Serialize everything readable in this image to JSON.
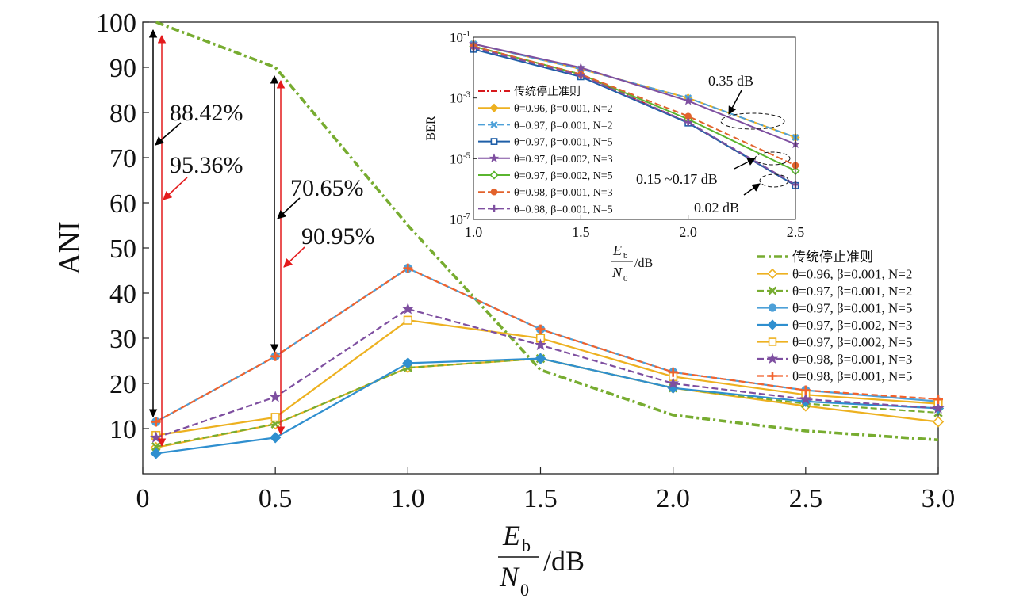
{
  "chart_data": [
    {
      "type": "line",
      "ylabel": "ANI",
      "xlabel_E": "E",
      "xlabel_b": "b",
      "xlabel_N": "N",
      "xlabel_0": "0",
      "xlabel_unit": "/dB",
      "xlim": [
        0,
        3.0
      ],
      "ylim": [
        0,
        100
      ],
      "x_ticks": [
        0,
        0.5,
        1.0,
        1.5,
        2.0,
        2.5,
        3.0
      ],
      "x_tick_labels": [
        "0",
        "0.5",
        "1.0",
        "1.5",
        "2.0",
        "2.5",
        "3.0"
      ],
      "y_ticks": [
        10,
        20,
        30,
        40,
        50,
        60,
        70,
        80,
        90,
        100
      ],
      "y_tick_labels": [
        "10",
        "20",
        "30",
        "40",
        "50",
        "60",
        "70",
        "80",
        "90",
        "100"
      ],
      "legend_position": "bottom-right",
      "x": [
        0.05,
        0.5,
        1.0,
        1.5,
        2.0,
        2.5,
        3.0
      ],
      "series": [
        {
          "name": "传统停止准则",
          "color": "#77AC30",
          "dash": "10,4,3,4",
          "marker": "none",
          "values": [
            100,
            90,
            55,
            23,
            13,
            9.5,
            7.5
          ]
        },
        {
          "name": "θ=0.96, β=0.001, N=2",
          "color": "#EDB120",
          "dash": "",
          "marker": "diamond-open",
          "values": [
            5.8,
            11,
            23.5,
            25.5,
            19,
            15,
            11.5
          ]
        },
        {
          "name": "θ=0.97, β=0.001, N=2",
          "color": "#77AC30",
          "dash": "8,4",
          "marker": "x",
          "values": [
            6,
            11,
            23.5,
            25.5,
            19,
            15.5,
            13.5
          ]
        },
        {
          "name": "θ=0.97, β=0.001, N=5",
          "color": "#4DA0D8",
          "dash": "",
          "marker": "circle",
          "values": [
            11.5,
            26,
            45.5,
            32,
            22.5,
            18.5,
            16
          ]
        },
        {
          "name": "θ=0.97, β=0.002, N=3",
          "color": "#2F8FCF",
          "dash": "",
          "marker": "diamond",
          "values": [
            4.5,
            8,
            24.5,
            25.5,
            19,
            16,
            14.5
          ]
        },
        {
          "name": "θ=0.97, β=0.002, N=5",
          "color": "#EDB120",
          "dash": "",
          "marker": "square-open",
          "values": [
            8.5,
            12.5,
            34,
            30,
            21.5,
            17.5,
            15.5
          ]
        },
        {
          "name": "θ=0.98, β=0.001, N=3",
          "color": "#7E4FA0",
          "dash": "8,4",
          "marker": "star",
          "values": [
            8,
            17,
            36.5,
            28.5,
            20,
            16.5,
            14.5
          ]
        },
        {
          "name": "θ=0.98, β=0.001, N=5",
          "color": "#F2622C",
          "dash": "8,4",
          "marker": "plus",
          "values": [
            11.5,
            26,
            45.5,
            32,
            22.5,
            18.5,
            16.5
          ]
        }
      ],
      "annotations": [
        {
          "text": "88.42%",
          "color": "black"
        },
        {
          "text": "95.36%",
          "color": "red"
        },
        {
          "text": "70.65%",
          "color": "black"
        },
        {
          "text": "90.95%",
          "color": "red"
        }
      ]
    },
    {
      "type": "line",
      "ylabel": "BER",
      "xlabel_E": "E",
      "xlabel_b": "b",
      "xlabel_N": "N",
      "xlabel_0": "0",
      "xlabel_unit": "/dB",
      "xlim": [
        1.0,
        2.5
      ],
      "y_scale": "log",
      "ylim_exp": [
        -7,
        -1
      ],
      "x_ticks": [
        1.0,
        1.5,
        2.0,
        2.5
      ],
      "x_tick_labels": [
        "1.0",
        "1.5",
        "2.0",
        "2.5"
      ],
      "y_tick_exps": [
        -1,
        -3,
        -5,
        -7
      ],
      "y_tick_base": "10",
      "y_tick_exp_labels": [
        "-1",
        "-3",
        "-5",
        "-7"
      ],
      "legend_position": "left",
      "x": [
        1.0,
        1.5,
        2.0,
        2.5
      ],
      "series": [
        {
          "name": "传统停止准则",
          "color": "#D7191C",
          "dash": "8,3,2,3",
          "marker": "none",
          "values": [
            0.05,
            0.006,
            0.00015,
            1.3e-06
          ]
        },
        {
          "name": "θ=0.96, β=0.001, N=2",
          "color": "#EDB120",
          "dash": "",
          "marker": "diamond",
          "values": [
            0.06,
            0.009,
            0.001,
            5e-05
          ]
        },
        {
          "name": "θ=0.97, β=0.001, N=2",
          "color": "#4DA0D8",
          "dash": "8,4",
          "marker": "x",
          "values": [
            0.06,
            0.009,
            0.001,
            5e-05
          ]
        },
        {
          "name": "θ=0.97, β=0.001, N=5",
          "color": "#1F5FA8",
          "dash": "",
          "marker": "square-open",
          "values": [
            0.04,
            0.005,
            0.00015,
            1.3e-06
          ]
        },
        {
          "name": "θ=0.97, β=0.002, N=3",
          "color": "#7E4FA0",
          "dash": "",
          "marker": "star",
          "values": [
            0.06,
            0.01,
            0.0008,
            3e-05
          ]
        },
        {
          "name": "θ=0.97, β=0.002, N=5",
          "color": "#5AB52F",
          "dash": "",
          "marker": "diamond-open",
          "values": [
            0.05,
            0.006,
            0.0002,
            4e-06
          ]
        },
        {
          "name": "θ=0.98, β=0.001, N=3",
          "color": "#E2622C",
          "dash": "8,4",
          "marker": "circle",
          "values": [
            0.05,
            0.006,
            0.00025,
            6e-06
          ]
        },
        {
          "name": "θ=0.98, β=0.001, N=5",
          "color": "#7E4FA0",
          "dash": "8,4",
          "marker": "plus",
          "values": [
            0.045,
            0.0055,
            0.00016,
            1.4e-06
          ]
        }
      ],
      "annotations": [
        {
          "text": "0.35 dB"
        },
        {
          "text": "0.15 ~0.17 dB"
        },
        {
          "text": "0.02 dB"
        }
      ]
    }
  ]
}
